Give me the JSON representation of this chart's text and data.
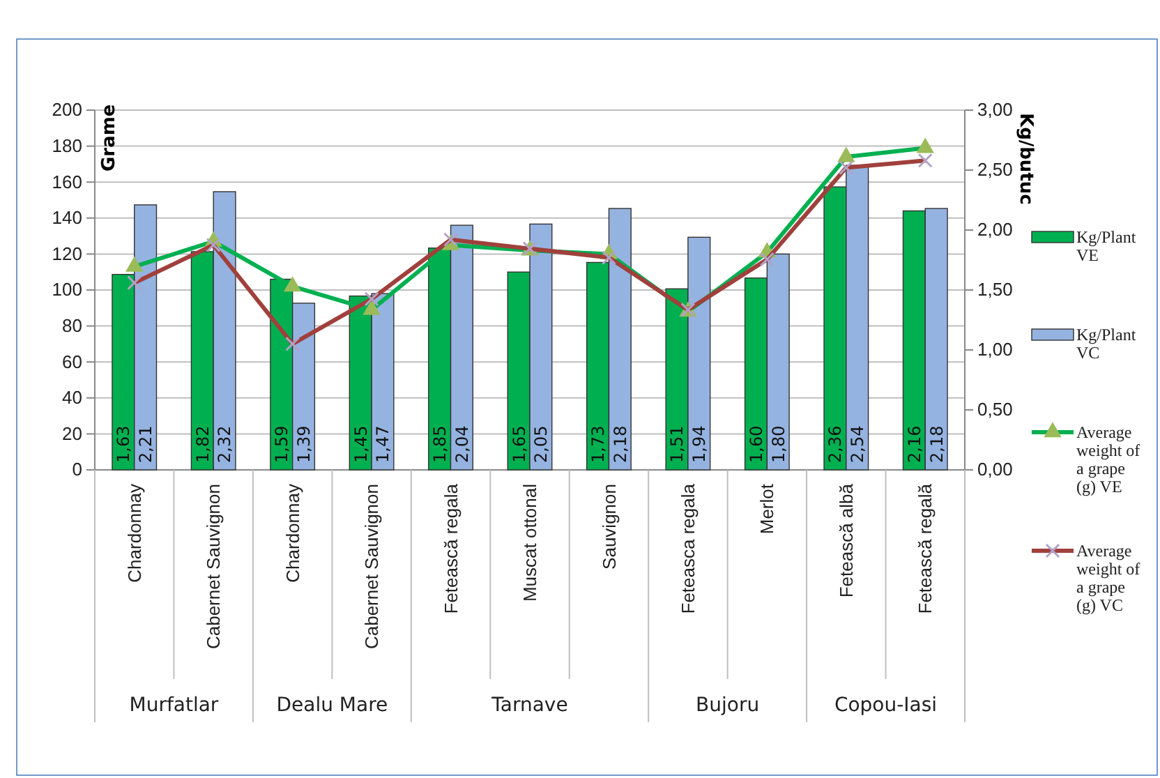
{
  "chart_data": {
    "type": "bar",
    "categories": [
      "Chardonnay",
      "Cabernet Sauvignon",
      "Chardonnay",
      "Cabernet Sauvignon",
      "Fetească regala",
      "Muscat ottonal",
      "Sauvignon",
      "Feteasca regala",
      "Merlot",
      "Fetească albă",
      "Fetească regală"
    ],
    "ylabel": "Grame",
    "y2label": "Kg/butuc",
    "ylim": [
      0,
      200
    ],
    "yticks": [
      0,
      20,
      40,
      60,
      80,
      100,
      120,
      140,
      160,
      180,
      200
    ],
    "y2lim": [
      0,
      3
    ],
    "y2ticks": [
      {
        "value": 0,
        "label": "0,00"
      },
      {
        "value": 0.5,
        "label": "0,50"
      },
      {
        "value": 1,
        "label": "1,00"
      },
      {
        "value": 1.5,
        "label": "1,50"
      },
      {
        "value": 2,
        "label": "2,00"
      },
      {
        "value": 2.5,
        "label": "2,50"
      },
      {
        "value": 3,
        "label": "3,00"
      }
    ],
    "grid": "y",
    "legend": "right",
    "annotations": [
      "Murfatlar",
      "Dealu Mare",
      "Tarnave",
      "Bujoru",
      "Copou-Iasi"
    ],
    "series": [
      {
        "name": "Kg/Plant VE",
        "axis": "y2",
        "color": "#00b050",
        "values": [
          1.63,
          1.82,
          1.59,
          1.45,
          1.85,
          1.65,
          1.73,
          1.51,
          1.6,
          2.36,
          2.16
        ],
        "value_labels": [
          "1,63",
          "1,82",
          "1,59",
          "1,45",
          "1,85",
          "1,65",
          "1,73",
          "1,51",
          "1,60",
          "2,36",
          "2,16"
        ]
      },
      {
        "name": "Kg/Plant VC",
        "axis": "y2",
        "color": "#95b3e0",
        "values": [
          2.21,
          2.32,
          1.39,
          1.47,
          2.04,
          2.05,
          2.18,
          1.94,
          1.8,
          2.54,
          2.18
        ],
        "value_labels": [
          "2,21",
          "2,32",
          "1,39",
          "1,47",
          "2,04",
          "2,05",
          "2,18",
          "1,94",
          "1,80",
          "2,54",
          "2,18"
        ]
      },
      {
        "name": "Average weight of a grape (g) VE",
        "type": "line",
        "marker": "triangle",
        "color": "#00b050",
        "values": [
          113,
          127,
          102,
          89,
          125,
          122,
          120,
          88,
          121,
          174,
          179
        ]
      },
      {
        "name": "Average weight of a grape (g) VC",
        "type": "line",
        "marker": "cross",
        "color": "#a0403c",
        "values": [
          104,
          125,
          70,
          95,
          128,
          123,
          118,
          89,
          117,
          168,
          172
        ]
      }
    ]
  }
}
